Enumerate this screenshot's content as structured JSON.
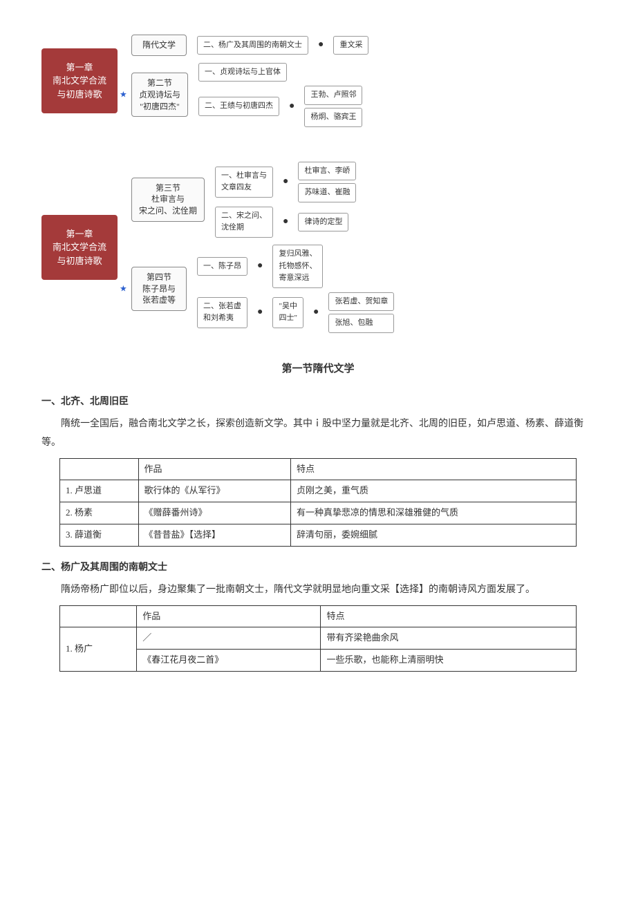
{
  "mindmap1": {
    "root": "第一章\n南北文学合流\n与初唐诗歌",
    "branches": [
      {
        "node": "隋代文学",
        "starred": false,
        "children": [
          {
            "label": "二、杨广及其周围的南朝文士",
            "bullet": true,
            "tail": "重文采"
          }
        ]
      },
      {
        "node": "第二节\n贞观诗坛与\n\"初唐四杰\"",
        "starred": true,
        "children": [
          {
            "label": "一、贞观诗坛与上官体"
          },
          {
            "label": "二、王绩与初唐四杰",
            "bullet": true,
            "leaves": [
              "王勃、卢照邻",
              "杨炯、骆宾王"
            ]
          }
        ]
      }
    ]
  },
  "mindmap2": {
    "root": "第一章\n南北文学合流\n与初唐诗歌",
    "branches": [
      {
        "node": "第三节\n杜审言与\n宋之问、沈佺期",
        "starred": false,
        "children": [
          {
            "label": "一、杜审言与\n文章四友",
            "bullet": true,
            "leaves": [
              "杜审言、李峤",
              "苏味道、崔融"
            ]
          },
          {
            "label": "二、宋之问、\n沈佺期",
            "bullet": true,
            "tail": "律诗的定型"
          }
        ]
      },
      {
        "node": "第四节\n陈子昂与\n张若虚等",
        "starred": true,
        "children": [
          {
            "label": "一、陈子昂",
            "bullet": true,
            "tail": "复归风雅、\n托物感怀、\n寄意深远"
          },
          {
            "label": "二、张若虚\n和刘希夷",
            "bullet": true,
            "mid": "\"吴中\n四士\"",
            "leaves": [
              "张若虚、贺知章",
              "张旭、包融"
            ]
          }
        ]
      }
    ]
  },
  "section_title": "第一节隋代文学",
  "part1": {
    "heading": "一、北齐、北周旧臣",
    "para": "隋统一全国后，融合南北文学之长，探索创造新文学。其中ｉ股中坚力量就是北齐、北周的旧臣，如卢思道、杨素、薛道衡等。",
    "table": {
      "headers": [
        "",
        "作品",
        "特点"
      ],
      "rows": [
        [
          "1. 卢思道",
          "歌行体的《从军行》",
          "贞刚之美，重气质"
        ],
        [
          "2. 杨素",
          "《赠薛番州诗》",
          "有一种真挚悲凉的情思和深雄雅健的气质"
        ],
        [
          "3. 薛道衡",
          "《昔昔盐》【选择】",
          "辞清句丽，委婉细腻"
        ]
      ]
    }
  },
  "part2": {
    "heading": "二、杨广及其周围的南朝文士",
    "para": "隋炀帝杨广即位以后，身边聚集了一批南朝文士，隋代文学就明显地向重文采【选择】的南朝诗风方面发展了。",
    "table": {
      "headers": [
        "",
        "作品",
        "特点"
      ],
      "rows": [
        {
          "name": "1. 杨广",
          "cells": [
            [
              "／",
              "带有齐梁艳曲余风"
            ],
            [
              "《春江花月夜二首》",
              "一些乐歌，也能称上清丽明快"
            ]
          ]
        }
      ]
    }
  },
  "colors": {
    "root_bg": "#a43a3a",
    "root_text": "#ffffff",
    "node_border": "#888888",
    "leaf_border": "#999999",
    "table_border": "#333333",
    "star": "#2a5fcf"
  }
}
